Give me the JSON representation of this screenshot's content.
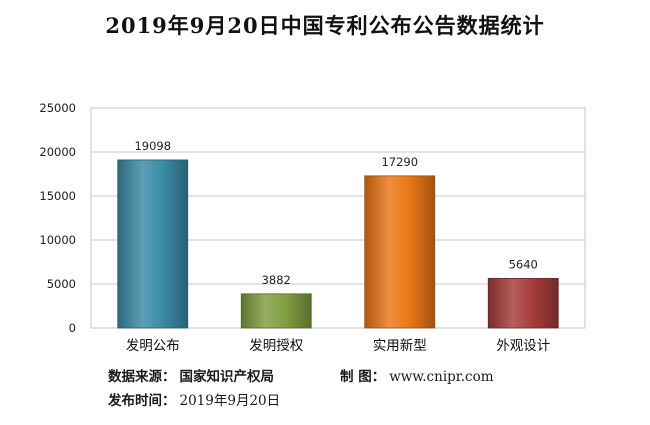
{
  "chart_data": {
    "type": "bar",
    "title": "2019年9月20日中国专利公布公告数据统计",
    "categories": [
      "发明公布",
      "发明授权",
      "实用新型",
      "外观设计"
    ],
    "values": [
      19098,
      3882,
      17290,
      5640
    ],
    "colors": [
      "#3a8aa6",
      "#7f9d3d",
      "#ea7515",
      "#a63a3a"
    ],
    "ylim": [
      0,
      25000
    ],
    "yticks": [
      0,
      5000,
      10000,
      15000,
      20000,
      25000
    ],
    "grid": true,
    "legend": "none",
    "xlabel": "",
    "ylabel": ""
  },
  "footer": {
    "source_label": "数据来源：",
    "source_value": "国家知识产权局",
    "credit_label": "制 图：",
    "credit_value": "www.cnipr.com",
    "date_label": "发布时间：",
    "date_value": "2019年9月20日"
  }
}
